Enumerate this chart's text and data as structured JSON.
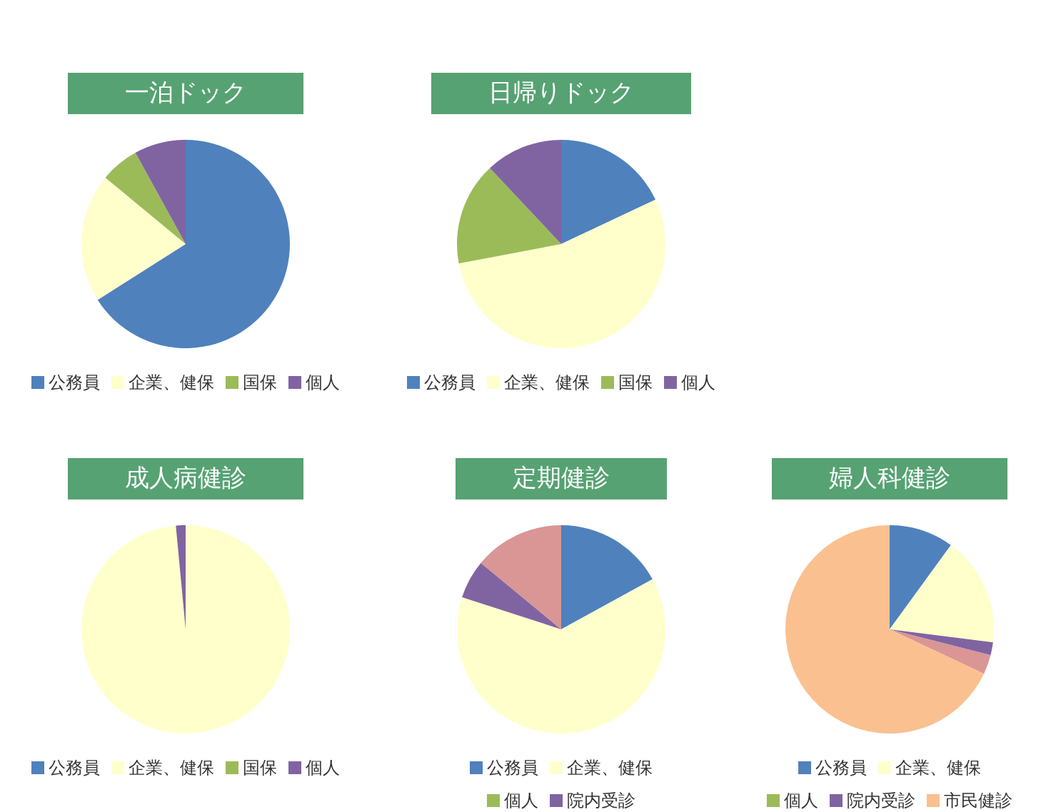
{
  "chart_data": [
    {
      "type": "pie",
      "title": "一泊ドック",
      "categories": [
        "公務員",
        "企業、健保",
        "国保",
        "個人"
      ],
      "values": [
        66,
        20,
        6,
        8
      ],
      "colors": [
        "#4f81bd",
        "#ffffcc",
        "#9bbb59",
        "#8064a2"
      ],
      "legend": "bottom"
    },
    {
      "type": "pie",
      "title": "日帰りドック",
      "categories": [
        "公務員",
        "企業、健保",
        "国保",
        "個人"
      ],
      "values": [
        18,
        54,
        16,
        12
      ],
      "colors": [
        "#4f81bd",
        "#ffffcc",
        "#9bbb59",
        "#8064a2"
      ],
      "legend": "bottom"
    },
    {
      "type": "pie",
      "title": "成人病健診",
      "categories": [
        "公務員",
        "企業、健保",
        "国保",
        "個人"
      ],
      "values": [
        0,
        98.5,
        0,
        1.5
      ],
      "colors": [
        "#4f81bd",
        "#ffffcc",
        "#9bbb59",
        "#8064a2"
      ],
      "legend": "bottom"
    },
    {
      "type": "pie",
      "title": "定期健診",
      "categories": [
        "公務員",
        "企業、健保",
        "個人",
        "院内受診",
        null
      ],
      "values": [
        17,
        63,
        0,
        6,
        14
      ],
      "colors": [
        "#4f81bd",
        "#ffffcc",
        "#9bbb59",
        "#8064a2",
        "#d99694"
      ],
      "legend": "bottom"
    },
    {
      "type": "pie",
      "title": "婦人科健診",
      "categories": [
        "公務員",
        "企業、健保",
        "個人",
        "院内受診",
        null,
        "市民健診"
      ],
      "values": [
        10,
        17,
        0,
        2,
        3,
        68
      ],
      "colors": [
        "#4f81bd",
        "#ffffcc",
        "#9bbb59",
        "#8064a2",
        "#d99694",
        "#fac090"
      ],
      "legend": "bottom"
    }
  ]
}
